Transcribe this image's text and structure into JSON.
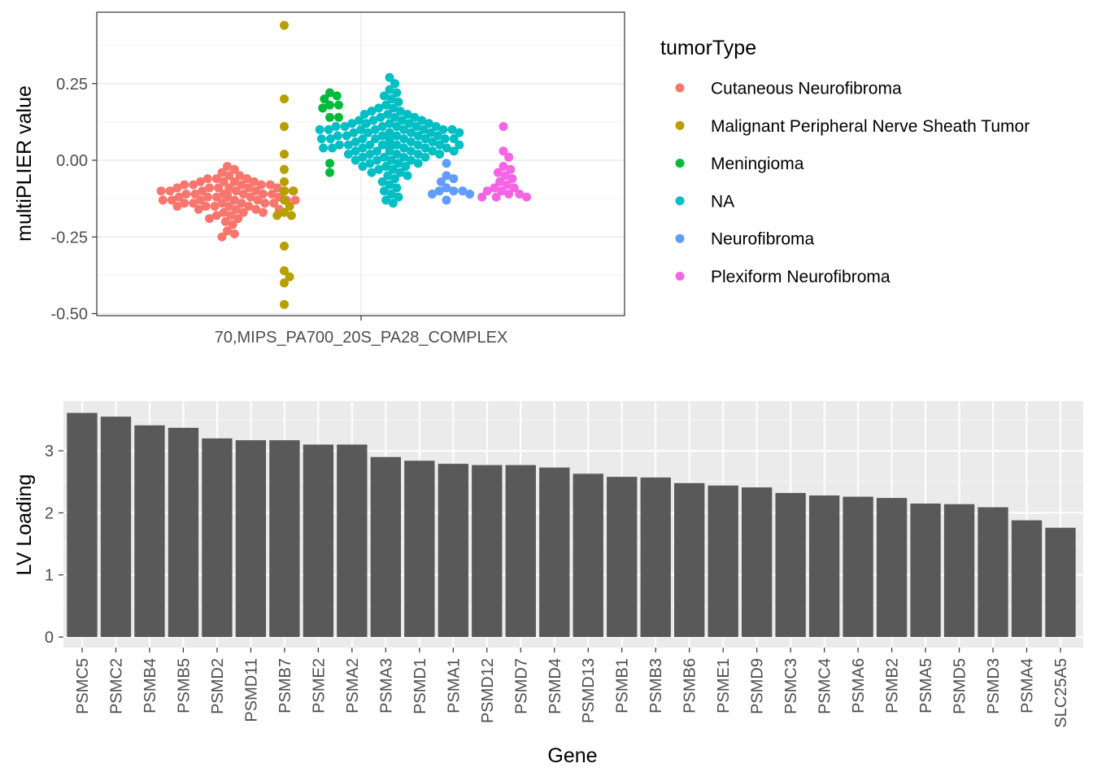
{
  "chart_data": [
    {
      "type": "scatter",
      "subtype": "beeswarm",
      "ylabel": "multiPLIER value",
      "xlabel": "",
      "categories": [
        "70,MIPS_PA700_20S_PA28_COMPLEX"
      ],
      "ylim": [
        -0.5,
        0.45
      ],
      "yticks": [
        -0.5,
        -0.25,
        0.0,
        0.25
      ],
      "ytick_labels": [
        "-0.50",
        "-0.25",
        "0.00",
        "0.25"
      ],
      "grid": true,
      "legend": {
        "title": "tumorType",
        "placement": "right",
        "entries": [
          {
            "label": "Cutaneous Neurofibroma",
            "color": "#F8766D"
          },
          {
            "label": "Malignant Peripheral Nerve Sheath Tumor",
            "color": "#B79F00"
          },
          {
            "label": "Meningioma",
            "color": "#00BA38"
          },
          {
            "label": "NA",
            "color": "#00BFC4"
          },
          {
            "label": "Neurofibroma",
            "color": "#619CFF"
          },
          {
            "label": "Plexiform Neurofibroma",
            "color": "#F564E3"
          }
        ]
      },
      "series": [
        {
          "name": "Cutaneous Neurofibroma",
          "color": "#F8766D",
          "x_offset": -0.47,
          "values": [
            -0.02,
            -0.03,
            -0.04,
            -0.05,
            -0.05,
            -0.06,
            -0.06,
            -0.06,
            -0.07,
            -0.07,
            -0.07,
            -0.07,
            -0.08,
            -0.08,
            -0.08,
            -0.08,
            -0.08,
            -0.09,
            -0.09,
            -0.09,
            -0.09,
            -0.09,
            -0.09,
            -0.1,
            -0.1,
            -0.1,
            -0.1,
            -0.1,
            -0.1,
            -0.1,
            -0.11,
            -0.11,
            -0.11,
            -0.11,
            -0.11,
            -0.11,
            -0.11,
            -0.11,
            -0.12,
            -0.12,
            -0.12,
            -0.12,
            -0.12,
            -0.12,
            -0.12,
            -0.12,
            -0.13,
            -0.13,
            -0.13,
            -0.13,
            -0.13,
            -0.13,
            -0.13,
            -0.14,
            -0.14,
            -0.14,
            -0.14,
            -0.14,
            -0.14,
            -0.15,
            -0.15,
            -0.15,
            -0.15,
            -0.15,
            -0.16,
            -0.16,
            -0.16,
            -0.16,
            -0.17,
            -0.17,
            -0.17,
            -0.18,
            -0.18,
            -0.19,
            -0.19,
            -0.2,
            -0.21,
            -0.23,
            -0.24,
            -0.25
          ]
        },
        {
          "name": "Malignant Peripheral Nerve Sheath Tumor",
          "color": "#B79F00",
          "x_offset": -0.27,
          "values": [
            0.44,
            0.2,
            0.11,
            0.02,
            -0.03,
            -0.07,
            -0.1,
            -0.1,
            -0.13,
            -0.15,
            -0.17,
            -0.18,
            -0.18,
            -0.28,
            -0.36,
            -0.38,
            -0.4,
            -0.47
          ]
        },
        {
          "name": "Meningioma",
          "color": "#00BA38",
          "x_offset": -0.11,
          "values": [
            0.22,
            0.21,
            0.2,
            0.18,
            0.18,
            0.17,
            0.14,
            0.14,
            -0.01,
            -0.04
          ]
        },
        {
          "name": "NA",
          "color": "#00BFC4",
          "x_offset": 0.1,
          "values": [
            0.27,
            0.25,
            0.23,
            0.22,
            0.21,
            0.2,
            0.19,
            0.18,
            0.17,
            0.17,
            0.16,
            0.16,
            0.15,
            0.15,
            0.15,
            0.14,
            0.14,
            0.14,
            0.13,
            0.13,
            0.13,
            0.13,
            0.12,
            0.12,
            0.12,
            0.12,
            0.12,
            0.11,
            0.11,
            0.11,
            0.11,
            0.11,
            0.11,
            0.1,
            0.1,
            0.1,
            0.1,
            0.1,
            0.1,
            0.1,
            0.1,
            0.09,
            0.09,
            0.09,
            0.09,
            0.09,
            0.09,
            0.09,
            0.09,
            0.09,
            0.08,
            0.08,
            0.08,
            0.08,
            0.08,
            0.08,
            0.08,
            0.08,
            0.08,
            0.08,
            0.07,
            0.07,
            0.07,
            0.07,
            0.07,
            0.07,
            0.07,
            0.07,
            0.07,
            0.07,
            0.06,
            0.06,
            0.06,
            0.06,
            0.06,
            0.06,
            0.06,
            0.06,
            0.06,
            0.05,
            0.05,
            0.05,
            0.05,
            0.05,
            0.05,
            0.05,
            0.05,
            0.04,
            0.04,
            0.04,
            0.04,
            0.04,
            0.04,
            0.04,
            0.03,
            0.03,
            0.03,
            0.03,
            0.03,
            0.03,
            0.02,
            0.02,
            0.02,
            0.02,
            0.02,
            0.01,
            0.01,
            0.01,
            0.01,
            0.0,
            0.0,
            0.0,
            0.0,
            -0.01,
            -0.01,
            -0.01,
            -0.02,
            -0.02,
            -0.02,
            -0.03,
            -0.03,
            -0.04,
            -0.04,
            -0.05,
            -0.05,
            -0.06,
            -0.07,
            -0.08,
            -0.09,
            -0.1,
            -0.11,
            -0.12,
            -0.13,
            -0.14
          ]
        },
        {
          "name": "Neurofibroma",
          "color": "#619CFF",
          "x_offset": 0.3,
          "values": [
            -0.01,
            -0.05,
            -0.06,
            -0.07,
            -0.09,
            -0.1,
            -0.1,
            -0.1,
            -0.11,
            -0.11,
            -0.13
          ]
        },
        {
          "name": "Plexiform Neurofibroma",
          "color": "#F564E3",
          "x_offset": 0.5,
          "values": [
            0.11,
            0.03,
            0.01,
            -0.02,
            -0.03,
            -0.04,
            -0.05,
            -0.06,
            -0.07,
            -0.08,
            -0.09,
            -0.09,
            -0.1,
            -0.1,
            -0.11,
            -0.11,
            -0.12,
            -0.12,
            -0.12
          ]
        }
      ]
    },
    {
      "type": "bar",
      "xlabel": "Gene",
      "ylabel": "LV Loading",
      "ylim": [
        0,
        3.6
      ],
      "yticks": [
        0,
        1,
        2,
        3
      ],
      "ytick_labels": [
        "0",
        "1",
        "2",
        "3"
      ],
      "grid": true,
      "color": "#595959",
      "categories": [
        "PSMC5",
        "PSMC2",
        "PSMB4",
        "PSMB5",
        "PSMD2",
        "PSMD11",
        "PSMB7",
        "PSME2",
        "PSMA2",
        "PSMA3",
        "PSMD1",
        "PSMA1",
        "PSMD12",
        "PSMD7",
        "PSMD4",
        "PSMD13",
        "PSMB1",
        "PSMB3",
        "PSMB6",
        "PSME1",
        "PSMD9",
        "PSMC3",
        "PSMC4",
        "PSMA6",
        "PSMB2",
        "PSMA5",
        "PSMD5",
        "PSMD3",
        "PSMA4",
        "SLC25A5"
      ],
      "values": [
        3.61,
        3.55,
        3.41,
        3.37,
        3.2,
        3.17,
        3.17,
        3.1,
        3.1,
        2.9,
        2.84,
        2.79,
        2.77,
        2.77,
        2.73,
        2.63,
        2.58,
        2.57,
        2.48,
        2.44,
        2.41,
        2.32,
        2.28,
        2.26,
        2.24,
        2.15,
        2.14,
        2.09,
        1.88,
        1.76
      ]
    }
  ]
}
